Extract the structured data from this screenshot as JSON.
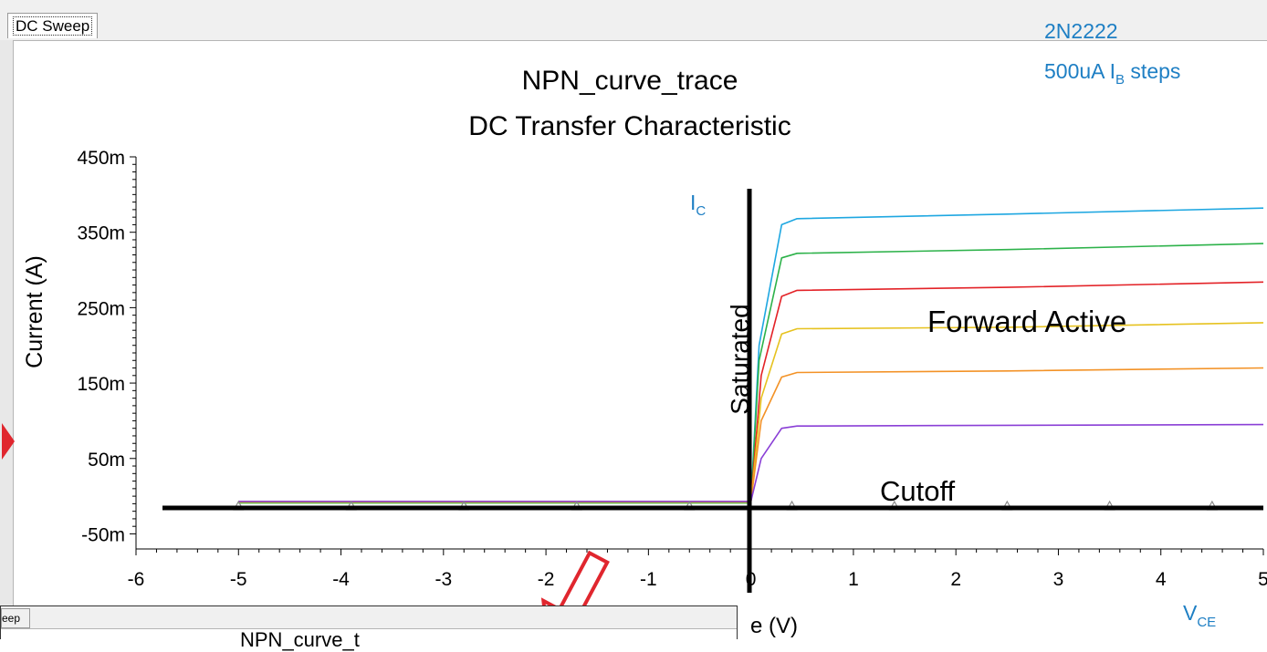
{
  "tab": {
    "label": "DC Sweep"
  },
  "annotations": {
    "part": "2N2222",
    "steps_prefix": "500uA I",
    "steps_sub": "B",
    "steps_suffix": " steps",
    "ic_main": "I",
    "ic_sub": "C",
    "vce_main": "V",
    "vce_sub": "CE",
    "saturated": "Saturated",
    "forward_active": "Forward Active",
    "cutoff": "Cutoff",
    "axis_partial": "e (V)"
  },
  "bottom_window": {
    "tab_label": "eep",
    "title_partial": "NPN_curve_t"
  },
  "chart_data": {
    "type": "line",
    "title": "NPN_curve_trace",
    "subtitle": "DC Transfer Characteristic",
    "xlabel": "Voltage (V)",
    "ylabel": "Current (A)",
    "xlim": [
      -6,
      5
    ],
    "ylim": [
      -0.07,
      0.45
    ],
    "x_ticks": [
      -6,
      -5,
      -4,
      -3,
      -2,
      -1,
      0,
      1,
      2,
      3,
      4,
      5
    ],
    "y_ticks": [
      0.45,
      0.35,
      0.25,
      0.15,
      0.05,
      -0.05
    ],
    "y_tick_labels": [
      "450m",
      "350m",
      "250m",
      "150m",
      "50m",
      "-50m"
    ],
    "sweep_start": -5,
    "marker_x": [
      -5,
      -3.9,
      -2.8,
      -1.7,
      -0.6,
      0.4,
      1.4,
      2.5,
      3.5,
      4.5
    ],
    "series": [
      {
        "color": "#1ea7e1",
        "values": [
          [
            -5,
            -0.008
          ],
          [
            0,
            -0.008
          ],
          [
            0.08,
            0.2
          ],
          [
            0.3,
            0.36
          ],
          [
            0.45,
            0.368
          ],
          [
            2.5,
            0.374
          ],
          [
            5,
            0.382
          ]
        ]
      },
      {
        "color": "#2db24a",
        "values": [
          [
            -5,
            -0.009
          ],
          [
            0,
            -0.009
          ],
          [
            0.08,
            0.18
          ],
          [
            0.3,
            0.316
          ],
          [
            0.45,
            0.322
          ],
          [
            2.5,
            0.327
          ],
          [
            5,
            0.335
          ]
        ]
      },
      {
        "color": "#e32227",
        "values": [
          [
            -5,
            -0.008
          ],
          [
            0,
            -0.008
          ],
          [
            0.1,
            0.16
          ],
          [
            0.3,
            0.265
          ],
          [
            0.45,
            0.273
          ],
          [
            2.5,
            0.277
          ],
          [
            5,
            0.284
          ]
        ]
      },
      {
        "color": "#e6c21f",
        "values": [
          [
            -5,
            -0.008
          ],
          [
            0,
            -0.008
          ],
          [
            0.1,
            0.13
          ],
          [
            0.3,
            0.215
          ],
          [
            0.45,
            0.222
          ],
          [
            2.5,
            0.224
          ],
          [
            5,
            0.23
          ]
        ]
      },
      {
        "color": "#f39226",
        "values": [
          [
            -5,
            -0.007
          ],
          [
            0,
            -0.007
          ],
          [
            0.1,
            0.1
          ],
          [
            0.3,
            0.158
          ],
          [
            0.45,
            0.164
          ],
          [
            2.5,
            0.166
          ],
          [
            5,
            0.17
          ]
        ]
      },
      {
        "color": "#8a3fd6",
        "values": [
          [
            -5,
            -0.007
          ],
          [
            0,
            -0.007
          ],
          [
            0.1,
            0.05
          ],
          [
            0.3,
            0.09
          ],
          [
            0.45,
            0.093
          ],
          [
            2.5,
            0.094
          ],
          [
            5,
            0.095
          ]
        ]
      }
    ]
  }
}
